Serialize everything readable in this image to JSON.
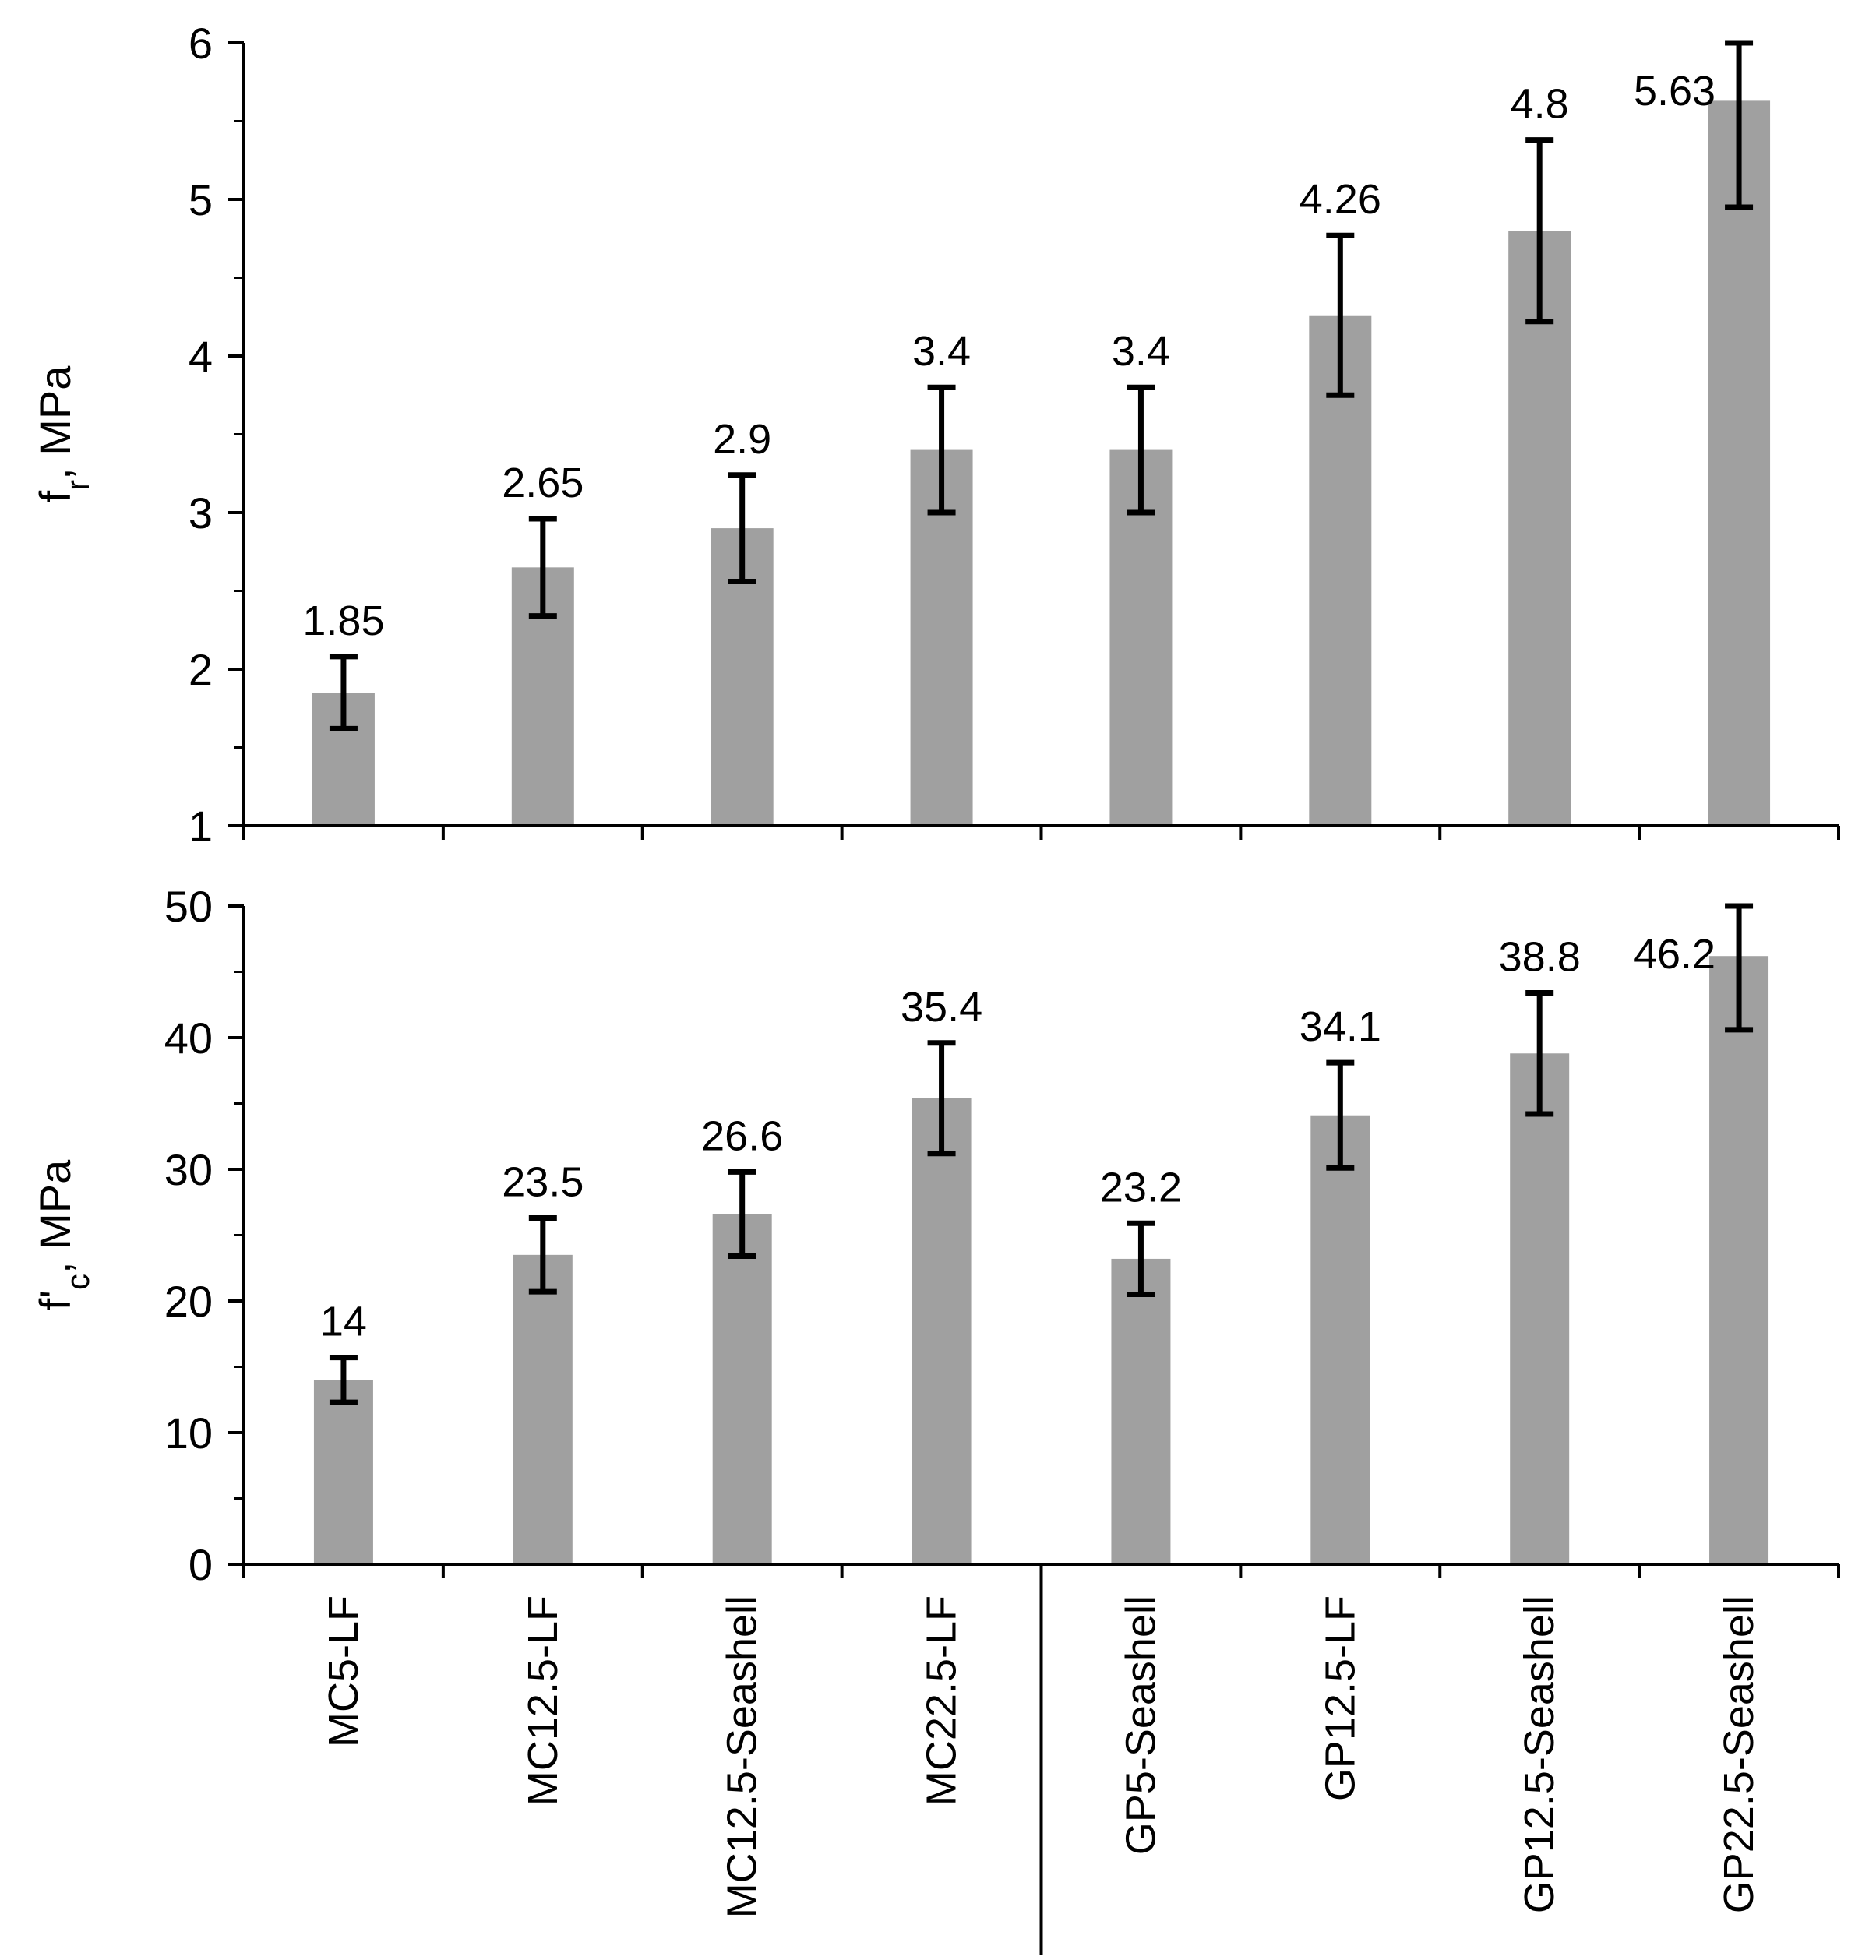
{
  "colors": {
    "bar": "#a0a0a0",
    "error_bar": "#000000",
    "axis": "#000000",
    "background": "#ffffff"
  },
  "categories": [
    "MC5-LF",
    "MC12.5-LF",
    "MC12.5-Seashell",
    "MC22.5-LF",
    "GP5-Seashell",
    "GP12.5-LF",
    "GP12.5-Seashell",
    "GP22.5-Seashell"
  ],
  "chart_data": [
    {
      "type": "bar",
      "title": "",
      "ylabel": "fr, MPa",
      "ylabel_main": "f",
      "ylabel_sub": "r",
      "ylabel_rest": ", MPa",
      "ylim": [
        1,
        6
      ],
      "yticks": [
        1,
        2,
        3,
        4,
        5,
        6
      ],
      "categories": [
        "MC5-LF",
        "MC12.5-LF",
        "MC12.5-Seashell",
        "MC22.5-LF",
        "GP5-Seashell",
        "GP12.5-LF",
        "GP12.5-Seashell",
        "GP22.5-Seashell"
      ],
      "values": [
        1.85,
        2.65,
        2.9,
        3.4,
        3.4,
        4.26,
        4.8,
        5.63
      ],
      "data_labels": [
        "1.85",
        "2.65",
        "2.9",
        "3.4",
        "3.4",
        "4.26",
        "4.8",
        "5.63"
      ],
      "errors": [
        0.23,
        0.31,
        0.34,
        0.4,
        0.4,
        0.51,
        0.58,
        0.68
      ]
    },
    {
      "type": "bar",
      "title": "",
      "ylabel": "f'c, MPa",
      "ylabel_main": "f'",
      "ylabel_sub": "c",
      "ylabel_rest": ", MPa",
      "ylim": [
        0,
        50
      ],
      "yticks": [
        0,
        10,
        20,
        30,
        40,
        50
      ],
      "categories": [
        "MC5-LF",
        "MC12.5-LF",
        "MC12.5-Seashell",
        "MC22.5-LF",
        "GP5-Seashell",
        "GP12.5-LF",
        "GP12.5-Seashell",
        "GP22.5-Seashell"
      ],
      "values": [
        14,
        23.5,
        26.6,
        35.4,
        23.2,
        34.1,
        38.8,
        46.2
      ],
      "data_labels": [
        "14",
        "23.5",
        "26.6",
        "35.4",
        "23.2",
        "34.1",
        "38.8",
        "46.2"
      ],
      "errors": [
        1.7,
        2.8,
        3.2,
        4.2,
        2.7,
        4.0,
        4.6,
        5.6
      ]
    }
  ]
}
